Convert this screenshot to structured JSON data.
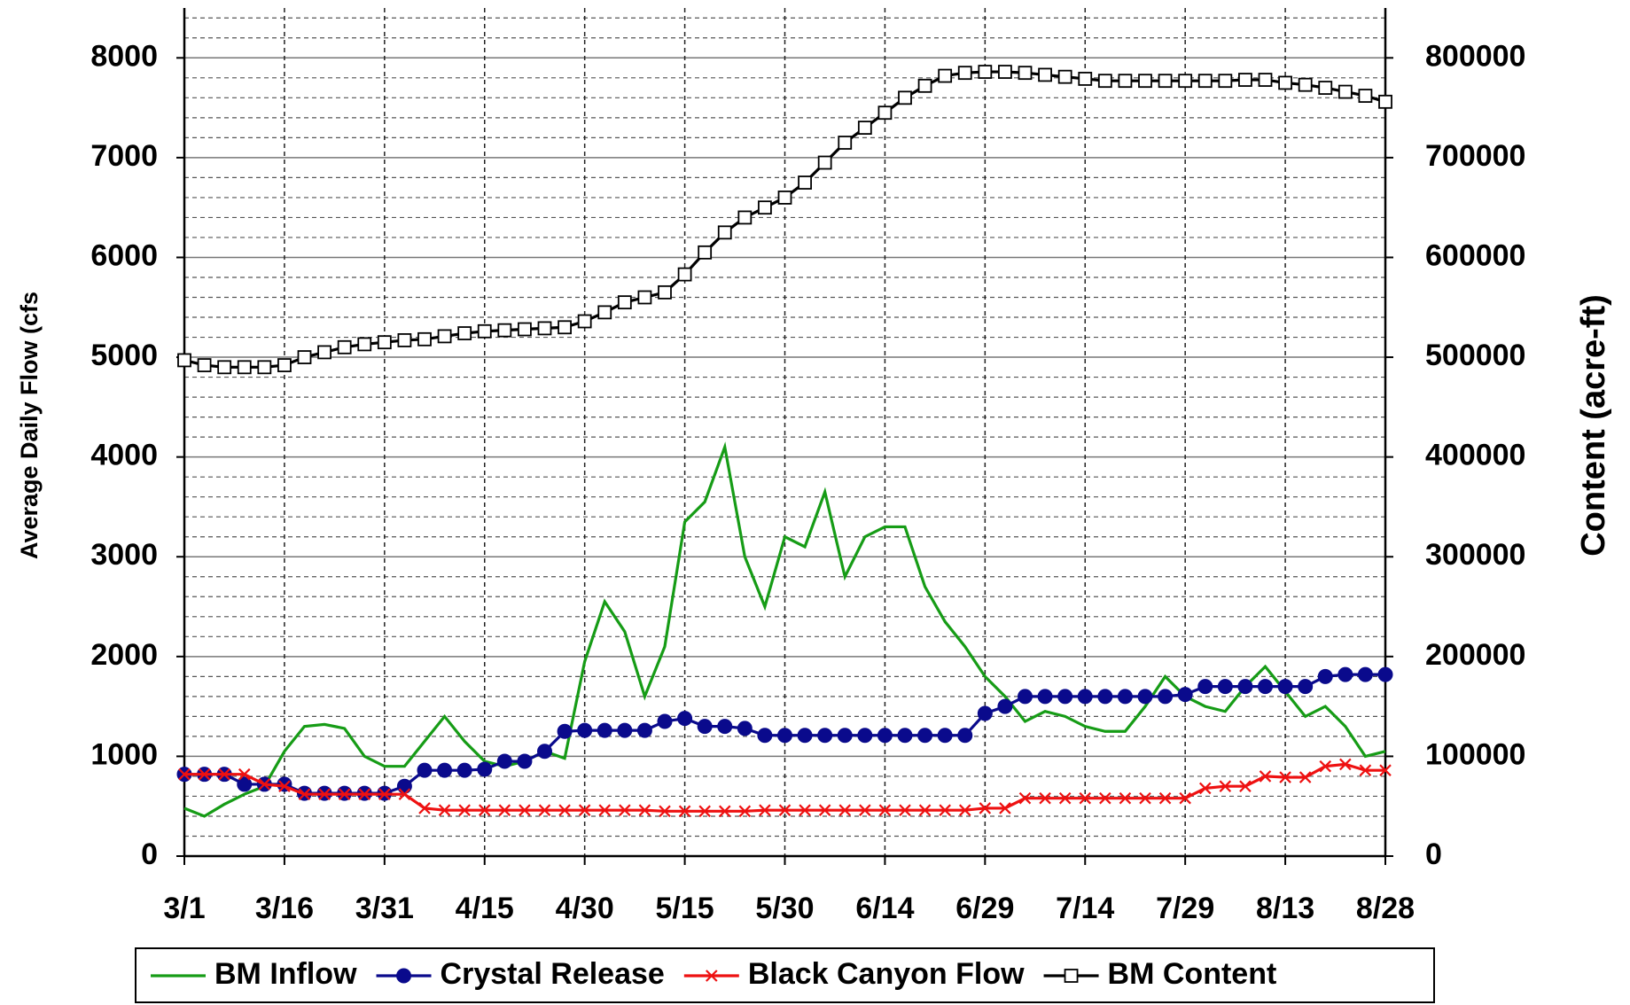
{
  "chart_data": {
    "type": "line",
    "ylabel": "Average Daily Flow (cfs",
    "y2label": "Content (acre-ft)",
    "categories": [
      "3/1",
      null,
      null,
      null,
      null,
      "3/16",
      null,
      null,
      null,
      null,
      "3/31",
      null,
      null,
      null,
      null,
      "4/15",
      null,
      null,
      null,
      null,
      "4/30",
      null,
      null,
      null,
      null,
      "5/15",
      null,
      null,
      null,
      null,
      "5/30",
      null,
      null,
      null,
      null,
      "6/14",
      null,
      null,
      null,
      null,
      "6/29",
      null,
      null,
      null,
      null,
      "7/14",
      null,
      null,
      null,
      null,
      "7/29",
      null,
      null,
      null,
      null,
      "8/13",
      null,
      null,
      null,
      null,
      "8/28"
    ],
    "ylim": [
      0,
      8500
    ],
    "yticks": [
      0,
      1000,
      2000,
      3000,
      4000,
      5000,
      6000,
      7000,
      8000
    ],
    "y2lim": [
      0,
      850000
    ],
    "y2ticks": [
      0,
      100000,
      200000,
      300000,
      400000,
      500000,
      600000,
      700000,
      800000
    ],
    "grid": true,
    "minor_grid": true,
    "legend": "bottom",
    "series": [
      {
        "name": "BM Inflow",
        "color": "#169c16",
        "marker": "none",
        "values": [
          480,
          400,
          520,
          620,
          700,
          1050,
          1300,
          1320,
          1280,
          1000,
          900,
          900,
          1150,
          1400,
          1150,
          950,
          900,
          950,
          1050,
          980,
          1950,
          2550,
          2250,
          1600,
          2100,
          3350,
          3550,
          4100,
          3000,
          2500,
          3200,
          3100,
          3650,
          2800,
          3200,
          3300,
          3300,
          2700,
          2350,
          2100,
          1800,
          1600,
          1350,
          1450,
          1400,
          1300,
          1250,
          1250,
          1500,
          1800,
          1600,
          1500,
          1450,
          1700,
          1900,
          1650,
          1400,
          1500,
          1300,
          1000,
          1050
        ]
      },
      {
        "name": "Crystal Release",
        "color": "#0a0a8c",
        "marker": "circle",
        "values": [
          820,
          820,
          820,
          720,
          720,
          720,
          630,
          630,
          630,
          630,
          630,
          700,
          860,
          860,
          860,
          870,
          950,
          950,
          1050,
          1250,
          1260,
          1260,
          1260,
          1260,
          1350,
          1380,
          1300,
          1300,
          1280,
          1210,
          1210,
          1210,
          1210,
          1210,
          1210,
          1210,
          1210,
          1210,
          1210,
          1210,
          1430,
          1500,
          1600,
          1600,
          1600,
          1600,
          1600,
          1600,
          1600,
          1600,
          1620,
          1700,
          1700,
          1700,
          1700,
          1700,
          1700,
          1800,
          1820,
          1820,
          1820
        ]
      },
      {
        "name": "Black Canyon Flow",
        "color": "#ee1111",
        "marker": "x",
        "values": [
          820,
          820,
          820,
          820,
          720,
          700,
          620,
          620,
          620,
          620,
          620,
          620,
          480,
          460,
          460,
          460,
          460,
          460,
          460,
          460,
          460,
          460,
          460,
          460,
          450,
          450,
          450,
          450,
          450,
          460,
          460,
          460,
          460,
          460,
          460,
          460,
          460,
          460,
          460,
          460,
          480,
          480,
          580,
          580,
          580,
          580,
          580,
          580,
          580,
          580,
          580,
          680,
          700,
          700,
          800,
          790,
          790,
          900,
          920,
          860,
          860
        ]
      },
      {
        "name": "BM Content",
        "color": "#000000",
        "marker": "square",
        "axis": "y2",
        "values": [
          497000,
          492000,
          490000,
          490000,
          490000,
          492000,
          500000,
          505000,
          510000,
          513000,
          515000,
          517000,
          518000,
          521000,
          524000,
          526000,
          527000,
          528000,
          529000,
          530000,
          536000,
          545000,
          555000,
          560000,
          565000,
          583000,
          605000,
          625000,
          640000,
          650000,
          660000,
          675000,
          695000,
          715000,
          730000,
          745000,
          760000,
          772000,
          782000,
          785000,
          786000,
          786000,
          785000,
          783000,
          781000,
          779000,
          777000,
          777000,
          777000,
          777000,
          777000,
          777000,
          777000,
          778000,
          778000,
          775000,
          773000,
          770000,
          766000,
          762000,
          756000
        ]
      }
    ]
  }
}
